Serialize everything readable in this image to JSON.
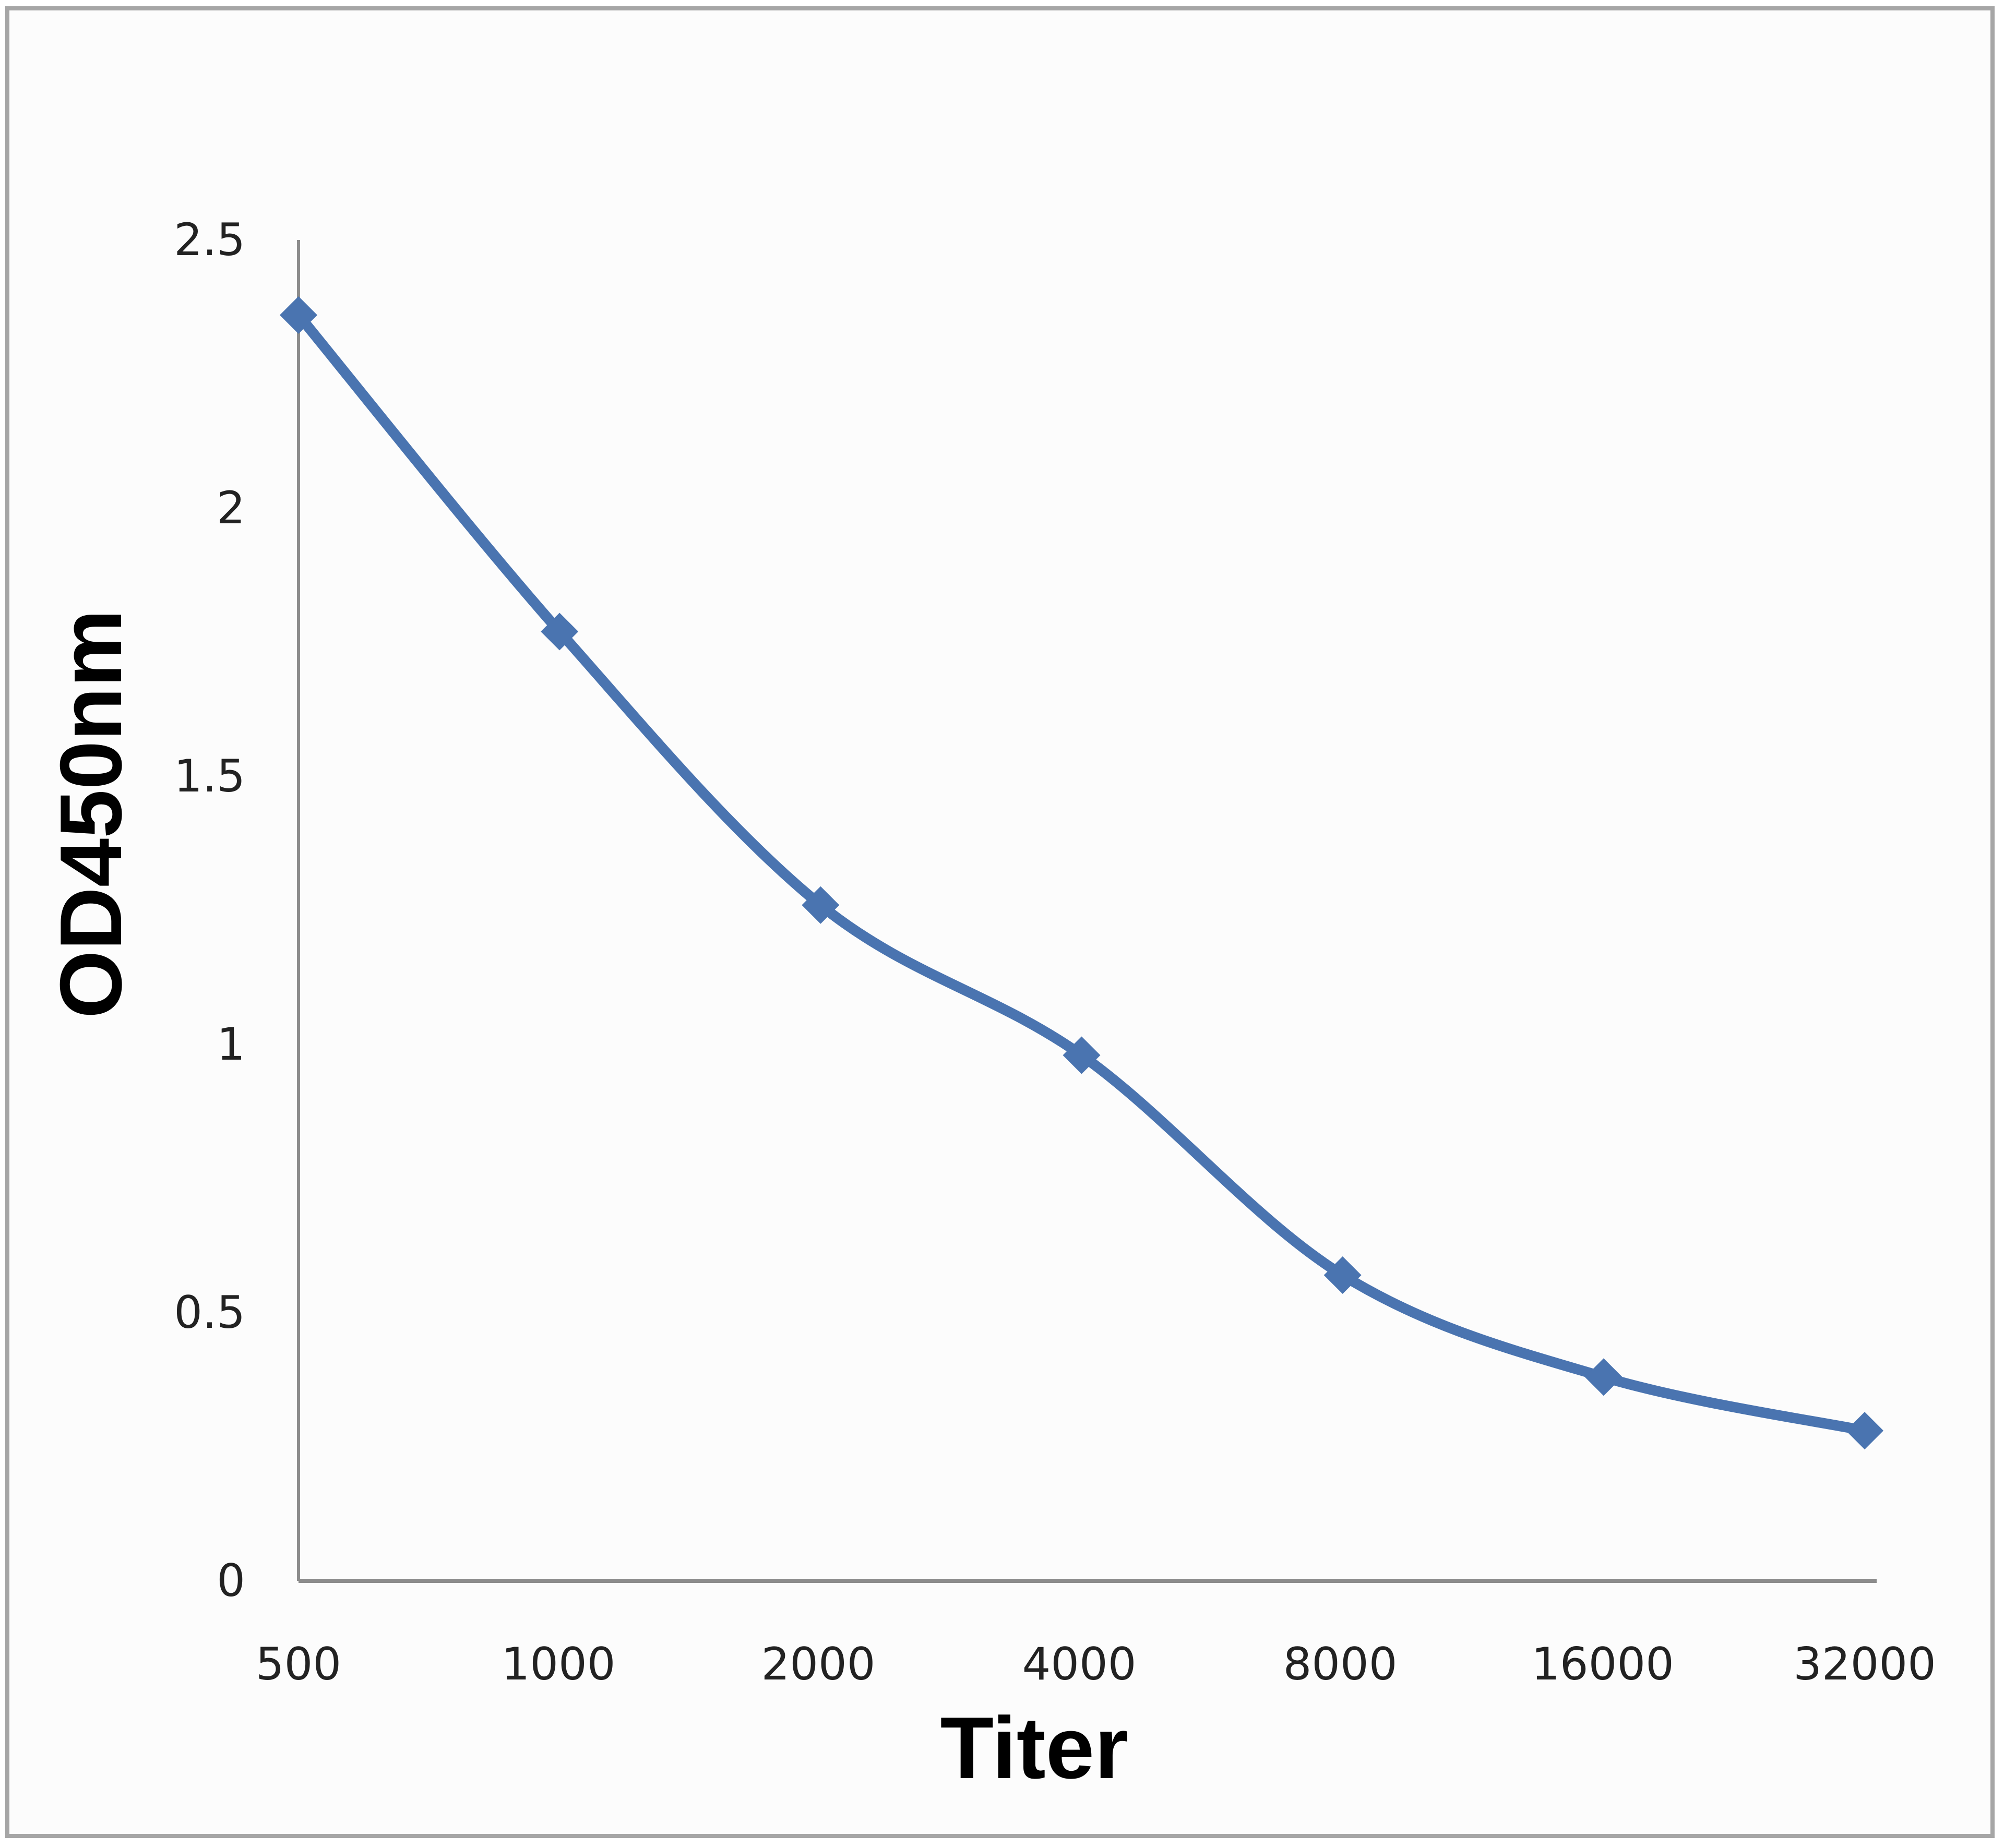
{
  "chart_data": {
    "type": "line",
    "title": "",
    "xlabel": "Titer",
    "ylabel": "OD450nm",
    "categories": [
      "500",
      "1000",
      "2000",
      "4000",
      "8000",
      "16000",
      "32000"
    ],
    "series": [
      {
        "name": "OD450nm",
        "values": [
          2.36,
          1.77,
          1.26,
          0.98,
          0.57,
          0.38,
          0.28
        ],
        "color": "#4a74b0",
        "marker": "diamond",
        "smooth": true
      }
    ],
    "yticks": [
      "0",
      "0.5",
      "1",
      "1.5",
      "2",
      "2.5"
    ],
    "ylim": [
      0,
      2.5
    ],
    "grid": false,
    "legend": "none"
  },
  "axes": {
    "x_title": "Titer",
    "y_title": "OD450nm",
    "x_ticks": [
      "500",
      "1000",
      "2000",
      "4000",
      "8000",
      "16000",
      "32000"
    ],
    "y_ticks": [
      "0",
      "0.5",
      "1",
      "1.5",
      "2",
      "2.5"
    ]
  },
  "colors": {
    "line": "#4a74b0",
    "axis": "#8c8c8c",
    "frame": "#a6a6a6"
  }
}
